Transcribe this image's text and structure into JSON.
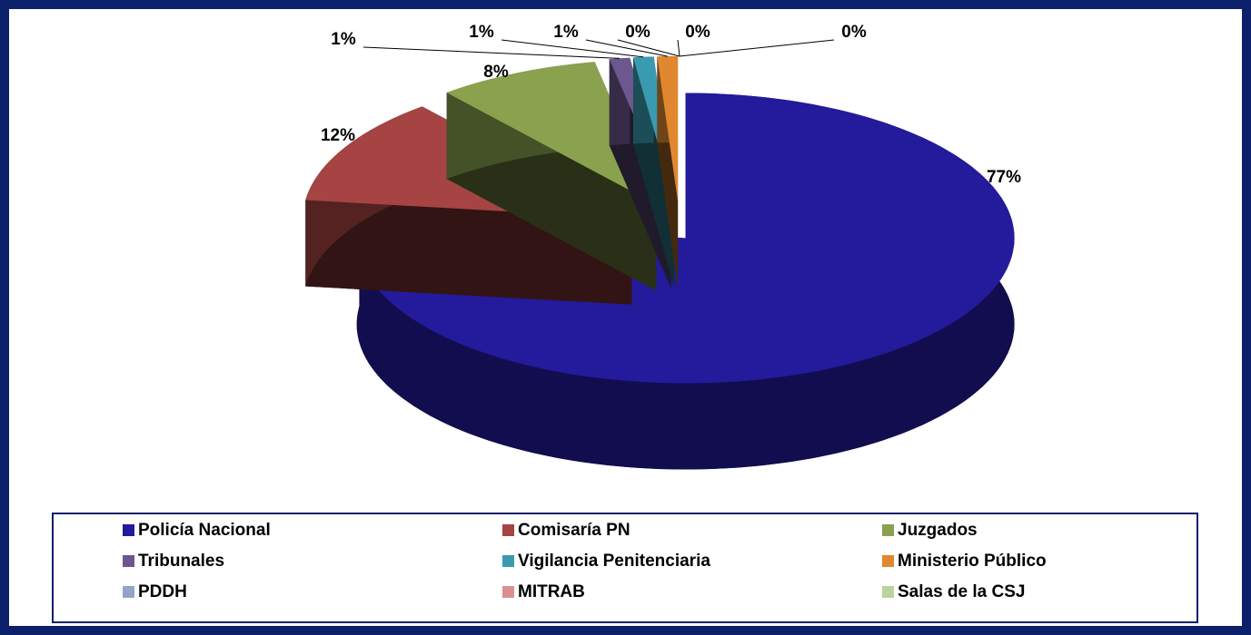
{
  "chart_data": {
    "type": "pie",
    "categories": [
      "Policía Nacional",
      "Comisaría PN",
      "Juzgados",
      "Tribunales",
      "Vigilancia Penitenciaria",
      "Ministerio Público",
      "PDDH",
      "MITRAB",
      "Salas de la CSJ"
    ],
    "values": [
      77,
      12,
      8,
      1,
      1,
      1,
      0,
      0,
      0
    ],
    "value_labels": [
      "77%",
      "12%",
      "8%",
      "1%",
      "1%",
      "1%",
      "0%",
      "0%",
      "0%"
    ],
    "colors": [
      "#231a9c",
      "#a54442",
      "#8aa14e",
      "#6c578f",
      "#3a9bb0",
      "#e0872f",
      "#8fa6c8",
      "#d9908e",
      "#b9d39a"
    ],
    "legend": "bottom"
  }
}
